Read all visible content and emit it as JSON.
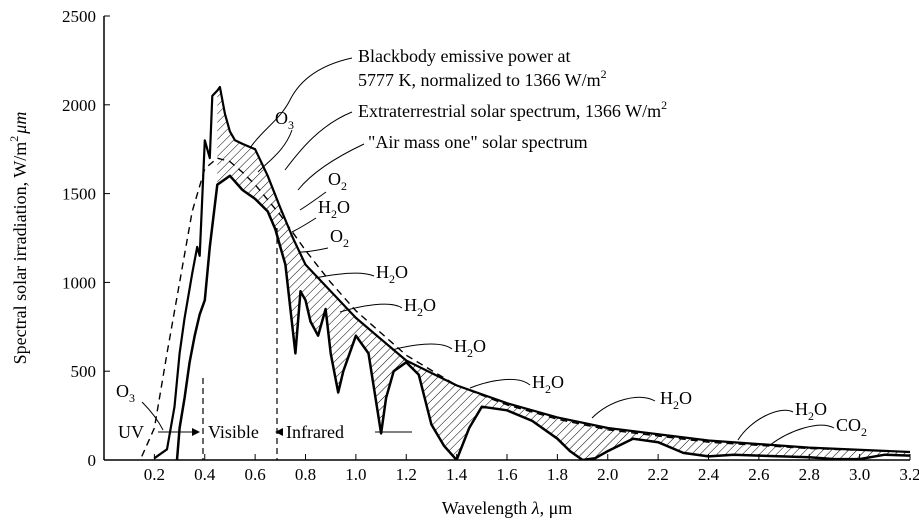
{
  "chart_data": {
    "type": "line",
    "xlabel_prefix": "Wavelength ",
    "xlabel_symbol": "λ",
    "xlabel_suffix": ", μm",
    "ylabel_prefix": "Spectral solar irradiation, W/m",
    "ylabel_sup": "2",
    "ylabel_suffix": "μm",
    "xlim": [
      0,
      3.2
    ],
    "ylim": [
      0,
      2500
    ],
    "x_ticks": [
      "0.2",
      "0.4",
      "0.6",
      "0.8",
      "1.0",
      "1.2",
      "1.4",
      "1.6",
      "1.8",
      "2.0",
      "2.2",
      "2.4",
      "2.6",
      "2.8",
      "3.0",
      "3.2"
    ],
    "y_ticks": [
      "0",
      "500",
      "1000",
      "1500",
      "2000",
      "2500"
    ],
    "series": [
      {
        "name": "Blackbody emissive power at 5777 K, normalized to 1366 W/m2",
        "style": "dashed",
        "x": [
          0.15,
          0.2,
          0.25,
          0.3,
          0.35,
          0.4,
          0.45,
          0.5,
          0.55,
          0.6,
          0.7,
          0.8,
          0.9,
          1.0,
          1.2,
          1.4,
          1.6,
          1.8,
          2.0,
          2.4,
          2.8,
          3.2
        ],
        "y": [
          20,
          180,
          600,
          1000,
          1400,
          1640,
          1700,
          1680,
          1620,
          1550,
          1380,
          1180,
          1000,
          840,
          590,
          420,
          310,
          230,
          170,
          100,
          65,
          45
        ]
      },
      {
        "name": "Extraterrestrial solar spectrum, 1366 W/m2",
        "style": "solid",
        "x": [
          0.2,
          0.25,
          0.28,
          0.3,
          0.32,
          0.35,
          0.37,
          0.38,
          0.4,
          0.42,
          0.43,
          0.45,
          0.46,
          0.48,
          0.5,
          0.52,
          0.55,
          0.6,
          0.65,
          0.7,
          0.75,
          0.8,
          0.9,
          1.0,
          1.2,
          1.4,
          1.6,
          1.8,
          2.0,
          2.4,
          2.8,
          3.2
        ],
        "y": [
          10,
          60,
          300,
          600,
          800,
          1050,
          1200,
          1150,
          1800,
          1700,
          2050,
          2080,
          2100,
          1950,
          1850,
          1800,
          1780,
          1750,
          1600,
          1420,
          1250,
          1100,
          950,
          800,
          560,
          420,
          320,
          240,
          180,
          110,
          70,
          45
        ]
      },
      {
        "name": "\"Air mass one\" solar spectrum",
        "style": "solid",
        "x": [
          0.29,
          0.3,
          0.32,
          0.34,
          0.36,
          0.38,
          0.4,
          0.42,
          0.45,
          0.5,
          0.55,
          0.6,
          0.65,
          0.68,
          0.7,
          0.72,
          0.74,
          0.76,
          0.78,
          0.8,
          0.82,
          0.85,
          0.88,
          0.9,
          0.93,
          0.95,
          1.0,
          1.05,
          1.1,
          1.12,
          1.15,
          1.2,
          1.25,
          1.3,
          1.35,
          1.4,
          1.45,
          1.5,
          1.6,
          1.7,
          1.8,
          1.85,
          1.9,
          1.95,
          2.0,
          2.1,
          2.2,
          2.3,
          2.4,
          2.5,
          2.6,
          2.8,
          2.9,
          3.0,
          3.1,
          3.2
        ],
        "y": [
          0,
          180,
          350,
          550,
          700,
          820,
          900,
          1200,
          1550,
          1600,
          1520,
          1470,
          1400,
          1300,
          1200,
          1100,
          850,
          600,
          950,
          900,
          780,
          700,
          850,
          600,
          380,
          500,
          700,
          600,
          150,
          350,
          500,
          550,
          480,
          200,
          80,
          0,
          180,
          300,
          280,
          220,
          120,
          50,
          0,
          10,
          50,
          120,
          100,
          40,
          20,
          30,
          25,
          15,
          5,
          5,
          30,
          25
        ]
      }
    ],
    "absorption_bands": [
      "O3",
      "O2",
      "H2O",
      "O2",
      "H2O",
      "H2O",
      "H2O",
      "H2O",
      "H2O",
      "H2O",
      "CO2",
      "O3"
    ],
    "regions": [
      "UV",
      "Visible",
      "Infrared"
    ],
    "annotations": {
      "bb_line1": "Blackbody emissive power at",
      "bb_line2_prefix": "5777 K, normalized to 1366 W/m",
      "bb_line2_sup": "2",
      "et_prefix": "Extraterrestrial solar spectrum, 1366 W/m",
      "et_sup": "2",
      "am1": "\"Air mass one\" solar spectrum"
    },
    "gas_labels": {
      "o3_top_main": "O",
      "o3_top_sub": "3",
      "o2_a_main": "O",
      "o2_a_sub": "2",
      "h2o_a_main": "H",
      "h2o_a_sub": "2",
      "h2o_a_tail": "O",
      "o2_b_main": "O",
      "o2_b_sub": "2",
      "h2o_b_main": "H",
      "h2o_b_sub": "2",
      "h2o_b_tail": "O",
      "h2o_c_main": "H",
      "h2o_c_sub": "2",
      "h2o_c_tail": "O",
      "h2o_d_main": "H",
      "h2o_d_sub": "2",
      "h2o_d_tail": "O",
      "h2o_e_main": "H",
      "h2o_e_sub": "2",
      "h2o_e_tail": "O",
      "h2o_f_main": "H",
      "h2o_f_sub": "2",
      "h2o_f_tail": "O",
      "h2o_g_main": "H",
      "h2o_g_sub": "2",
      "h2o_g_tail": "O",
      "co2_main": "CO",
      "co2_sub": "2",
      "o3_left_main": "O",
      "o3_left_sub": "3"
    },
    "colors": {
      "line": "#000000",
      "background": "#ffffff"
    }
  }
}
